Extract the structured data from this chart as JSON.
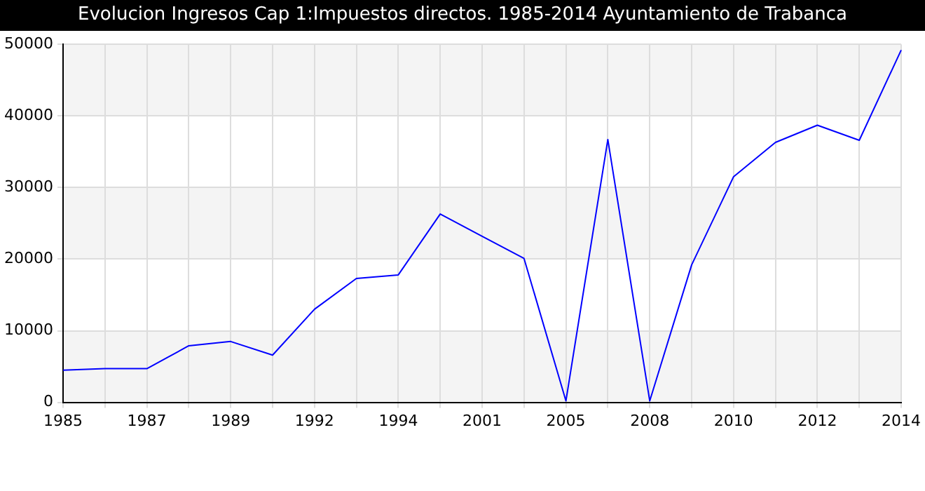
{
  "chart_data": {
    "type": "line",
    "title": "Evolucion Ingresos Cap 1:Impuestos directos. 1985-2014 Ayuntamiento de Trabanca",
    "categories": [
      "1985",
      null,
      "1987",
      null,
      "1989",
      null,
      "1992",
      null,
      "1994",
      null,
      "2001",
      null,
      "2005",
      null,
      "2008",
      null,
      "2010",
      null,
      "2012",
      null,
      "2014"
    ],
    "series": [
      {
        "color": "#0000ff",
        "values": [
          4500,
          4700,
          4700,
          7900,
          8500,
          6600,
          13000,
          17300,
          17800,
          26300,
          23200,
          20100,
          200,
          36700,
          200,
          19200,
          31500,
          36300,
          38700,
          36600,
          49200
        ]
      }
    ],
    "ylim": [
      0,
      50000
    ],
    "yticks": [
      0,
      10000,
      20000,
      30000,
      40000,
      50000
    ],
    "grid": true,
    "marker": "none",
    "line_style": "solid"
  }
}
